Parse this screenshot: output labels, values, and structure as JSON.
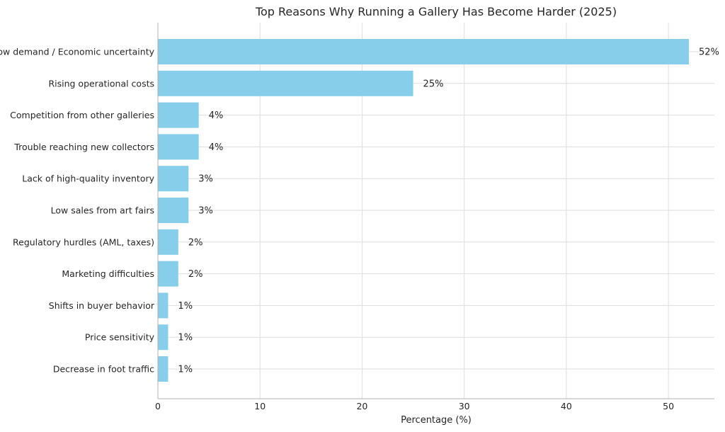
{
  "chart_data": {
    "type": "bar",
    "orientation": "horizontal",
    "title": "Top Reasons Why Running a Gallery Has Become Harder (2025)",
    "xlabel": "Percentage (%)",
    "ylabel": "",
    "xlim": [
      0,
      54.5
    ],
    "xticks": [
      0,
      10,
      20,
      30,
      40,
      50
    ],
    "grid": true,
    "bar_color": "#87ceeb",
    "categories": [
      "Low demand / Economic uncertainty",
      "Rising operational costs",
      "Competition from other galleries",
      "Trouble reaching new collectors",
      "Lack of high-quality inventory",
      "Low sales from art fairs",
      "Regulatory hurdles (AML, taxes)",
      "Marketing difficulties",
      "Shifts in buyer behavior",
      "Price sensitivity",
      "Decrease in foot traffic"
    ],
    "values": [
      52,
      25,
      4,
      4,
      3,
      3,
      2,
      2,
      1,
      1,
      1
    ],
    "value_labels": [
      "52%",
      "25%",
      "4%",
      "4%",
      "3%",
      "3%",
      "2%",
      "2%",
      "1%",
      "1%",
      "1%"
    ]
  }
}
